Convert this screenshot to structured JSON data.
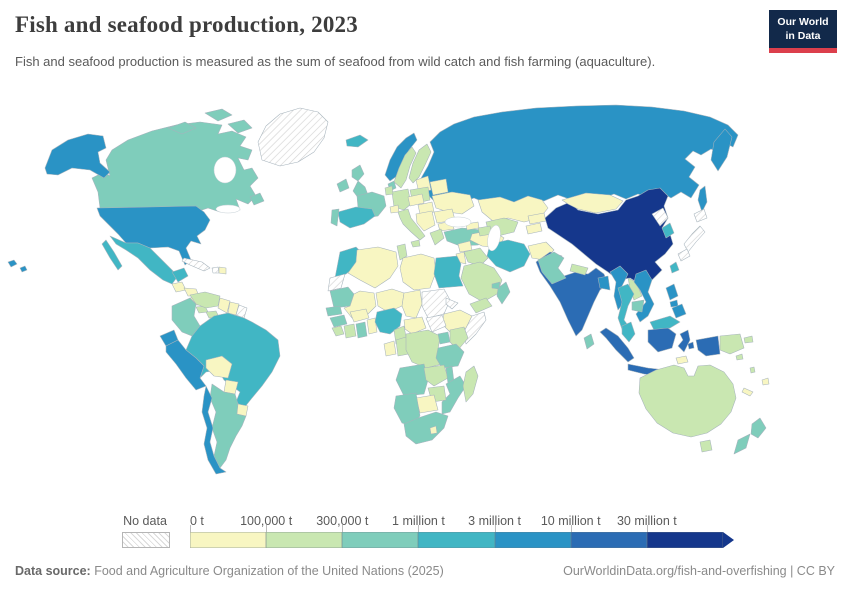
{
  "header": {
    "title": "Fish and seafood production, 2023",
    "subtitle": "Fish and seafood production is measured as the sum of seafood from wild catch and fish farming (aquaculture).",
    "logo": {
      "line1": "Our World",
      "line2": "in Data",
      "bg": "#12294a",
      "accent": "#dc3f4c"
    }
  },
  "footer": {
    "source_label": "Data source:",
    "source": "Food and Agriculture Organization of the United Nations (2025)",
    "link": "OurWorldinData.org/fish-and-overfishing | CC BY"
  },
  "chart_data": {
    "type": "choropleth_map",
    "title": "Fish and seafood production, 2023",
    "year": 2023,
    "unit": "tonnes (t)",
    "legend": {
      "position": "bottom",
      "no_data_label": "No data",
      "thresholds": [
        "0 t",
        "100,000 t",
        "300,000 t",
        "1 million t",
        "3 million t",
        "10 million t",
        "30 million t"
      ],
      "bins": [
        {
          "range": "0 t – 100,000 t",
          "color": "#f8f6c2"
        },
        {
          "range": "100,000 t – 300,000 t",
          "color": "#c9e7b1"
        },
        {
          "range": "300,000 t – 1 million t",
          "color": "#7fcdbb"
        },
        {
          "range": "1 million t – 3 million t",
          "color": "#41b6c4"
        },
        {
          "range": "3 million t – 10 million t",
          "color": "#2a93c5"
        },
        {
          "range": "10 million t – 30 million t",
          "color": "#2b6cb4"
        },
        {
          "range": "30+ million t",
          "color": "#15378c"
        }
      ],
      "no_data_value": 0
    },
    "countries": {
      "united-states": 5,
      "canada": 3,
      "greenland": 0,
      "mexico": 4,
      "guatemala": 1,
      "honduras": 1,
      "nicaragua": 1,
      "costa-rica": 2,
      "panama": 2,
      "cuba": 0,
      "haiti": 0,
      "dominican-republic": 1,
      "venezuela": 2,
      "colombia": 3,
      "guyana": 1,
      "suriname": 1,
      "french-guiana": 0,
      "ecuador": 5,
      "peru": 5,
      "brazil": 4,
      "bolivia": 1,
      "paraguay": 1,
      "uruguay": 1,
      "argentina": 3,
      "chile": 5,
      "iceland": 4,
      "ireland": 3,
      "united-kingdom": 3,
      "norway": 5,
      "sweden": 2,
      "finland": 2,
      "denmark": 3,
      "baltic-states": 1,
      "belarus": 1,
      "poland": 2,
      "germany": 2,
      "netherlands": 2,
      "france": 3,
      "spain": 4,
      "portugal": 3,
      "switzerland": 1,
      "czechia": 1,
      "hungary": 1,
      "italy": 2,
      "balkans": 1,
      "greece": 2,
      "romania": 1,
      "bulgaria": 1,
      "ukraine": 1,
      "turkey": 3,
      "russia": 5,
      "kazakhstan": 1,
      "uzbekistan": 2,
      "turkmenistan": 1,
      "kyrgyzstan": 1,
      "tajikistan": 1,
      "georgia": 1,
      "azerbaijan": 2,
      "syria": 1,
      "jordan": 1,
      "iraq": 2,
      "iran": 4,
      "afghanistan": 1,
      "pakistan": 3,
      "saudi-arabia": 2,
      "yemen": 2,
      "oman": 3,
      "united-arab-emirates": 3,
      "morocco": 4,
      "western-sahara": 0,
      "algeria": 1,
      "tunisia": 2,
      "libya": 1,
      "egypt": 4,
      "mauritania": 3,
      "mali": 1,
      "niger": 1,
      "chad": 1,
      "sudan": 0,
      "eritrea": 0,
      "ethiopia": 1,
      "somalia": 0,
      "senegal": 3,
      "guinea": 3,
      "sierra-leone": 2,
      "ivory-coast": 2,
      "ghana": 3,
      "benin": 1,
      "burkina-faso": 1,
      "nigeria": 4,
      "cameroon": 2,
      "central-african-republic": 1,
      "south-sudan": 0,
      "gabon": 1,
      "congo": 2,
      "dr-congo": 2,
      "uganda": 3,
      "kenya": 2,
      "tanzania": 3,
      "angola": 3,
      "zambia": 2,
      "malawi": 3,
      "mozambique": 3,
      "zimbabwe": 2,
      "botswana": 1,
      "namibia": 3,
      "south-africa": 3,
      "lesotho": 1,
      "madagascar": 2,
      "china": 7,
      "mongolia": 1,
      "north-korea": 0,
      "south-korea": 4,
      "japan": 0,
      "taiwan": 4,
      "india": 6,
      "nepal": 2,
      "bangladesh": 5,
      "myanmar": 5,
      "thailand": 4,
      "laos": 2,
      "cambodia": 3,
      "vietnam": 5,
      "sri-lanka": 3,
      "malaysia": 4,
      "indonesia": 6,
      "timor-leste": 1,
      "philippines": 5,
      "papua-new-guinea": 2,
      "solomon-islands": 2,
      "vanuatu": 2,
      "australia": 2,
      "new-zealand": 3,
      "fiji": 1,
      "new-caledonia": 1
    }
  }
}
